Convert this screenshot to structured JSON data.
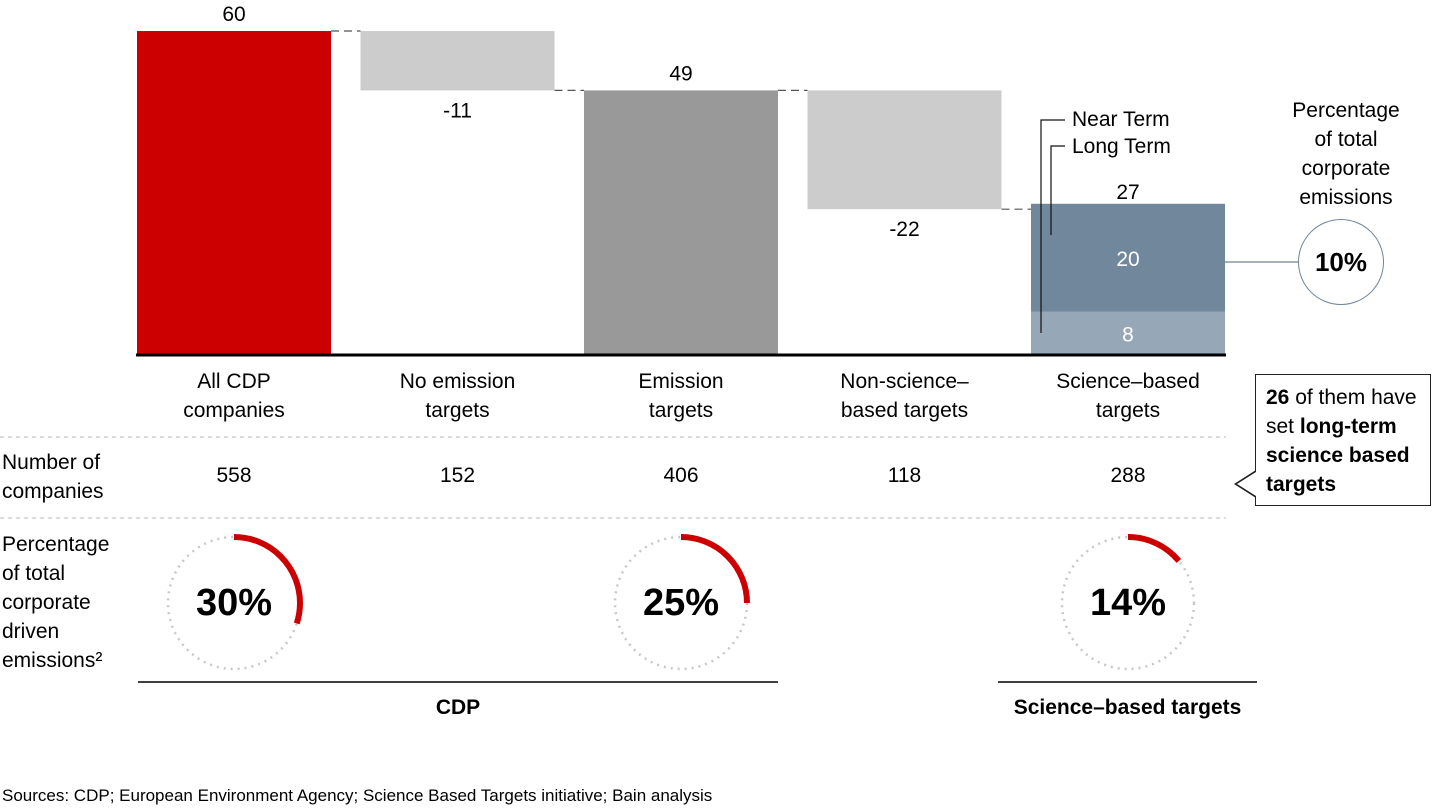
{
  "chart_data": {
    "type": "waterfall",
    "categories": [
      {
        "label": "All CDP\ncompanies",
        "value": 60,
        "value_label": "60",
        "kind": "total",
        "color": "#cc0000",
        "companies": "558",
        "pct_driven": 30,
        "pct_label": "30%"
      },
      {
        "label": "No emission\ntargets",
        "value": -11,
        "value_label": "-11",
        "kind": "delta",
        "color": "#cccccc",
        "companies": "152",
        "pct_driven": null,
        "pct_label": ""
      },
      {
        "label": "Emission\ntargets",
        "value": 49,
        "value_label": "49",
        "kind": "total",
        "color": "#999999",
        "companies": "406",
        "pct_driven": 25,
        "pct_label": "25%"
      },
      {
        "label": "Non-science–\nbased targets",
        "value": -22,
        "value_label": "-22",
        "kind": "delta",
        "color": "#cccccc",
        "companies": "118",
        "pct_driven": null,
        "pct_label": ""
      },
      {
        "label": "Science–based\ntargets",
        "value": 27,
        "value_label": "27",
        "kind": "stacked",
        "color": "#71889c",
        "companies": "288",
        "pct_driven": 14,
        "pct_label": "14%",
        "segments": [
          {
            "name": "Long Term",
            "value": 8,
            "value_label": "8",
            "color": "#96a8b7"
          },
          {
            "name": "Near Term",
            "value": 20,
            "value_label": "20",
            "color": "#71889c"
          }
        ]
      }
    ],
    "ylim": [
      0,
      60
    ],
    "legend": [
      "Near Term",
      "Long Term"
    ],
    "colors": {
      "accent": "#cc0000",
      "ring": "#cc0000",
      "ring_track": "#c8c8c8"
    }
  },
  "rows": {
    "companies_label": "Number of\ncompanies",
    "pct_label": "Percentage\nof total\ncorporate\ndriven\nemissions²"
  },
  "emissions_badge": {
    "title": "Percentage\nof total\ncorporate\nemissions",
    "value": "10%"
  },
  "callout": {
    "count": "26",
    "text_mid": " of them have set ",
    "text_bold": "long-term science based targets"
  },
  "groups": {
    "cdp": "CDP",
    "sbt": "Science–based targets"
  },
  "source": "Sources: CDP; European Environment Agency; Science Based Targets initiative; Bain analysis"
}
